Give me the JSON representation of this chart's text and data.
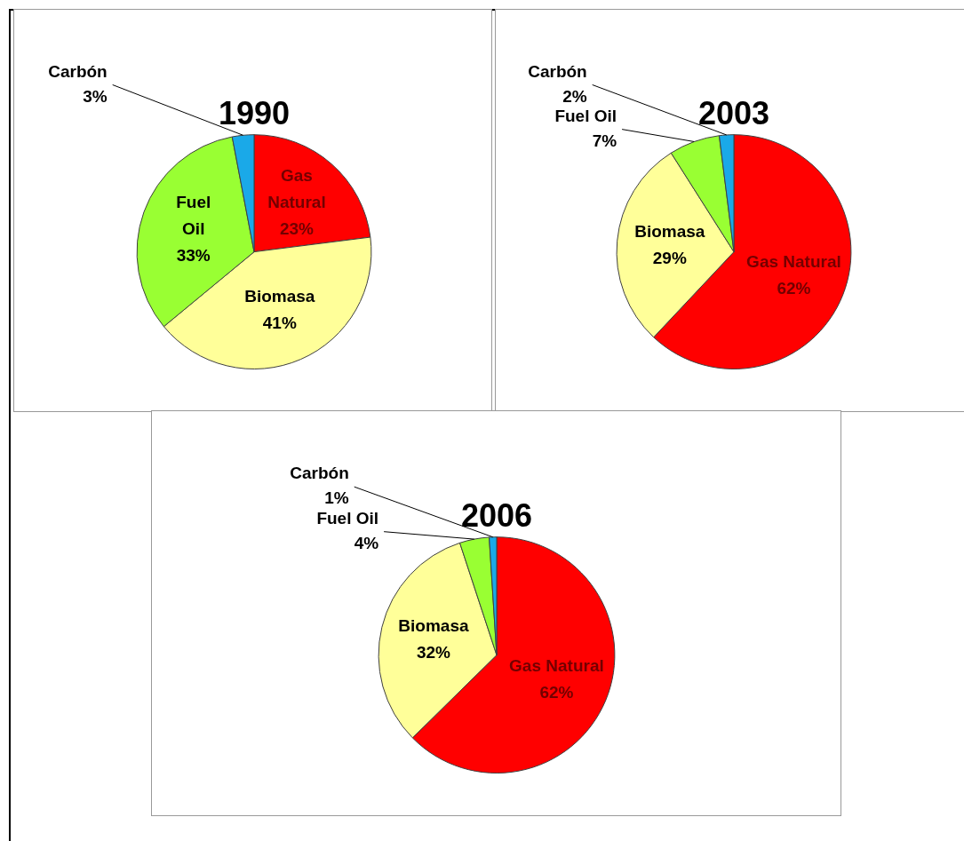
{
  "chart_data": [
    {
      "type": "pie",
      "title": "1990",
      "categories": [
        "Gas Natural",
        "Biomasa",
        "Fuel Oil",
        "Carbón"
      ],
      "values": [
        23,
        41,
        33,
        3
      ],
      "value_labels": [
        "23%",
        "41%",
        "33%",
        "3%"
      ],
      "colors": [
        "#ff0000",
        "#ffff99",
        "#99ff33",
        "#1aa9e8"
      ]
    },
    {
      "type": "pie",
      "title": "2003",
      "categories": [
        "Gas Natural",
        "Biomasa",
        "Fuel Oil",
        "Carbón"
      ],
      "values": [
        62,
        29,
        7,
        2
      ],
      "value_labels": [
        "62%",
        "29%",
        "7%",
        "2%"
      ],
      "colors": [
        "#ff0000",
        "#ffff99",
        "#99ff33",
        "#1aa9e8"
      ]
    },
    {
      "type": "pie",
      "title": "2006",
      "categories": [
        "Gas Natural",
        "Biomasa",
        "Fuel Oil",
        "Carbón"
      ],
      "values": [
        62,
        32,
        4,
        1
      ],
      "value_labels": [
        "62%",
        "32%",
        "4%",
        "1%"
      ],
      "colors": [
        "#ff0000",
        "#ffff99",
        "#99ff33",
        "#1aa9e8"
      ]
    }
  ]
}
